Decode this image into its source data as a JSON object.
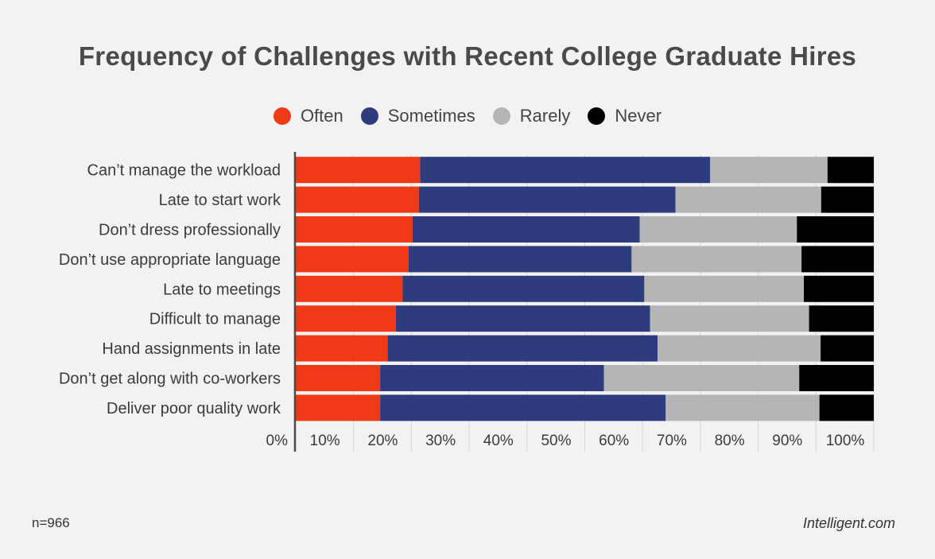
{
  "title": "Frequency of Challenges with Recent College Graduate Hires",
  "footer": {
    "sample": "n=966",
    "source": "Intelligent.com"
  },
  "chart_data": {
    "type": "bar",
    "orientation": "horizontal",
    "stacked": true,
    "title": "Frequency of Challenges with Recent College Graduate Hires",
    "xlabel": "",
    "ylabel": "",
    "xlim": [
      0,
      100
    ],
    "x_ticks": [
      "0%",
      "10%",
      "20%",
      "30%",
      "40%",
      "50%",
      "60%",
      "70%",
      "80%",
      "90%",
      "100%"
    ],
    "legend_position": "top-center",
    "grid": "vertical",
    "categories": [
      "Can’t manage the workload",
      "Late to start work",
      "Don’t dress professionally",
      "Don’t use appropriate language",
      "Late to meetings",
      "Difficult to manage",
      "Hand assignments in late",
      "Don’t get along with co-workers",
      "Deliver poor quality work"
    ],
    "series": [
      {
        "name": "Often",
        "color": "#f03a17",
        "values": [
          21.5,
          21.3,
          20.2,
          19.5,
          18.5,
          17.3,
          15.9,
          14.6,
          14.6
        ]
      },
      {
        "name": "Sometimes",
        "color": "#2e3b7c",
        "values": [
          50.2,
          44.4,
          39.3,
          38.6,
          41.8,
          44.0,
          46.7,
          38.7,
          49.4
        ]
      },
      {
        "name": "Rarely",
        "color": "#b5b5b5",
        "values": [
          20.3,
          25.2,
          27.2,
          29.4,
          27.6,
          27.5,
          28.2,
          33.8,
          26.6
        ]
      },
      {
        "name": "Never",
        "color": "#000000",
        "values": [
          8.0,
          9.1,
          13.3,
          12.5,
          12.1,
          11.2,
          9.2,
          12.9,
          9.4
        ]
      }
    ]
  }
}
